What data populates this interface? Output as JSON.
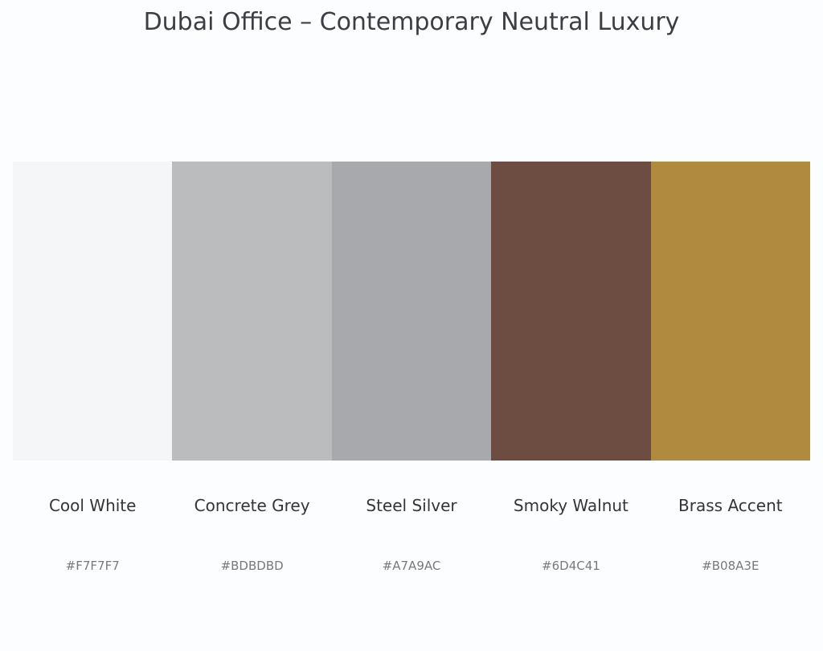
{
  "title": "Dubai Office – Contemporary Neutral Luxury",
  "palette": [
    {
      "name": "Cool White",
      "hex": "#F7F7F7",
      "color": "#F5F6F8"
    },
    {
      "name": "Concrete Grey",
      "hex": "#BDBDBD",
      "color": "#BBBCBE"
    },
    {
      "name": "Steel Silver",
      "hex": "#A7A9AC",
      "color": "#A7A9AD"
    },
    {
      "name": "Smoky Walnut",
      "hex": "#6D4C41",
      "color": "#6D4D42"
    },
    {
      "name": "Brass Accent",
      "hex": "#B08A3E",
      "color": "#B08A3F"
    }
  ]
}
